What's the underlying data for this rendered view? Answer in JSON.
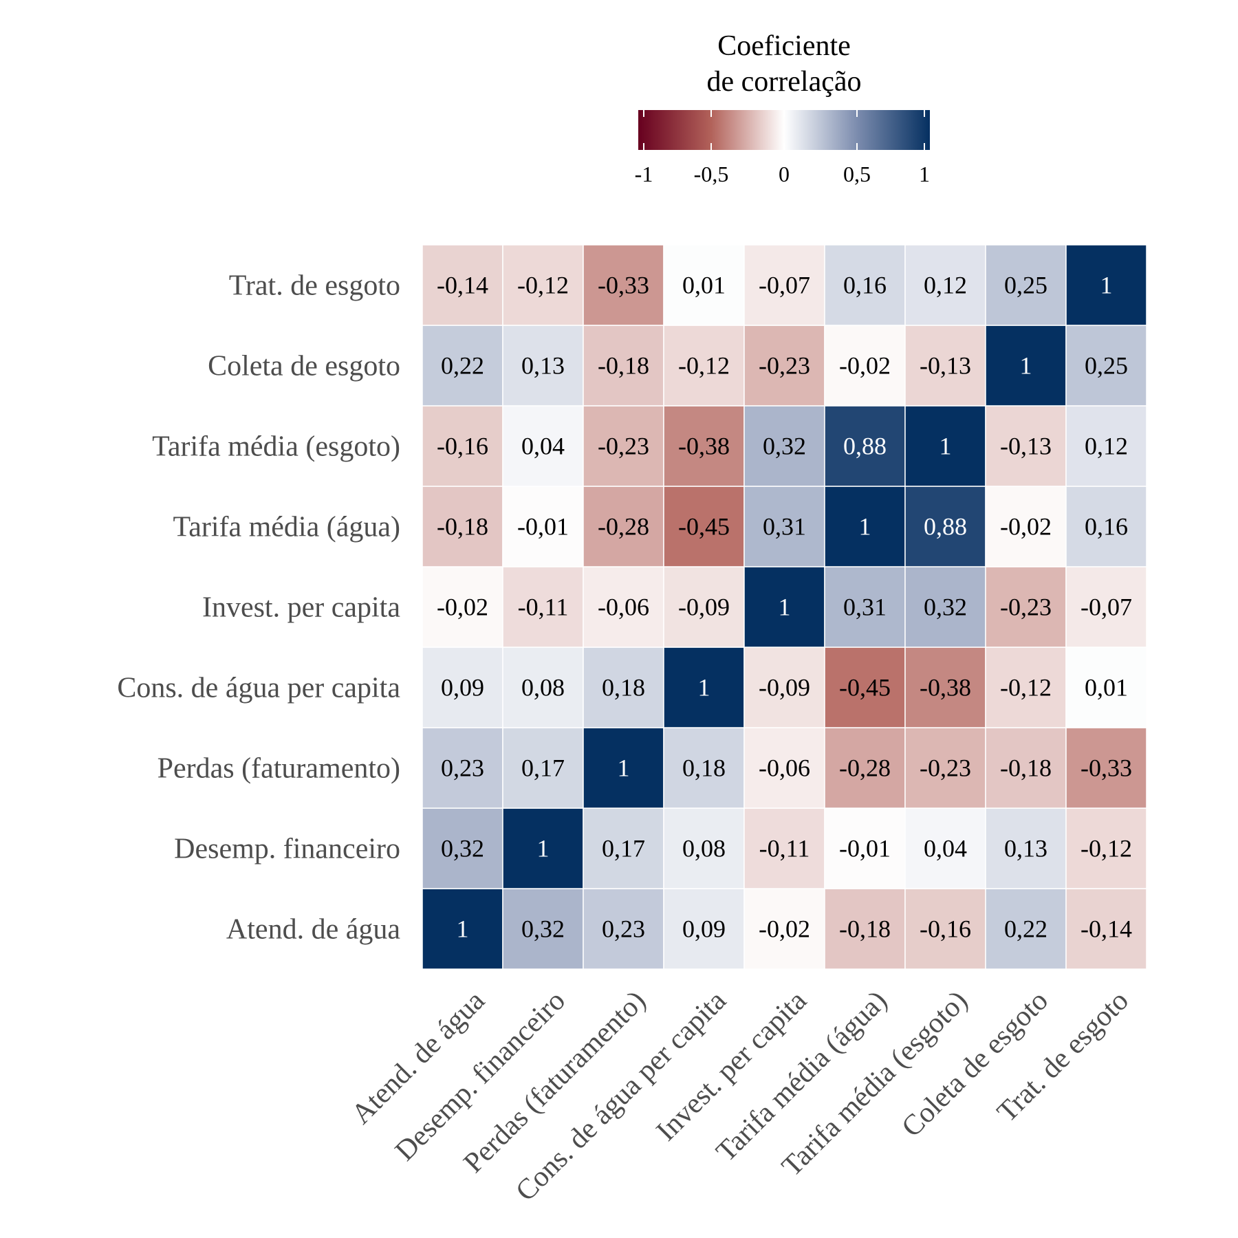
{
  "chart_data": {
    "type": "heatmap",
    "legend": {
      "title_line1": "Coeficiente",
      "title_line2": "de correlação",
      "ticks": [
        {
          "value": -1,
          "label": "-1"
        },
        {
          "value": -0.5,
          "label": "-0,5"
        },
        {
          "value": 0,
          "label": "0"
        },
        {
          "value": 0.5,
          "label": "0,5"
        },
        {
          "value": 1,
          "label": "1"
        }
      ],
      "range": [
        -1,
        1
      ],
      "placement": "top"
    },
    "colors": {
      "negative": "#67001F",
      "neutral": "#FFFFFF",
      "positive": "#053061"
    },
    "variables": [
      "Atend. de água",
      "Desemp. financeiro",
      "Perdas (faturamento)",
      "Cons. de água per capita",
      "Invest. per capita",
      "Tarifa média (água)",
      "Tarifa média (esgoto)",
      "Coleta de esgoto",
      "Trat. de esgoto"
    ],
    "matrix": [
      [
        1,
        0.32,
        0.23,
        0.09,
        -0.02,
        -0.18,
        -0.16,
        0.22,
        -0.14
      ],
      [
        0.32,
        1,
        0.17,
        0.08,
        -0.11,
        -0.01,
        0.04,
        0.13,
        -0.12
      ],
      [
        0.23,
        0.17,
        1,
        0.18,
        -0.06,
        -0.28,
        -0.23,
        -0.18,
        -0.33
      ],
      [
        0.09,
        0.08,
        0.18,
        1,
        -0.09,
        -0.45,
        -0.38,
        -0.12,
        0.01
      ],
      [
        -0.02,
        -0.11,
        -0.06,
        -0.09,
        1,
        0.31,
        0.32,
        -0.23,
        -0.07
      ],
      [
        -0.18,
        -0.01,
        -0.28,
        -0.45,
        0.31,
        1,
        0.88,
        -0.02,
        0.16
      ],
      [
        -0.16,
        0.04,
        -0.23,
        -0.38,
        0.32,
        0.88,
        1,
        -0.13,
        0.12
      ],
      [
        0.22,
        0.13,
        -0.18,
        -0.12,
        -0.23,
        -0.02,
        -0.13,
        1,
        0.25
      ],
      [
        -0.14,
        -0.12,
        -0.33,
        0.01,
        -0.07,
        0.16,
        0.12,
        0.25,
        1
      ]
    ],
    "cell_labels": [
      [
        "1",
        "0,32",
        "0,23",
        "0,09",
        "-0,02",
        "-0,18",
        "-0,16",
        "0,22",
        "-0,14"
      ],
      [
        "0,32",
        "1",
        "0,17",
        "0,08",
        "-0,11",
        "-0,01",
        "0,04",
        "0,13",
        "-0,12"
      ],
      [
        "0,23",
        "0,17",
        "1",
        "0,18",
        "-0,06",
        "-0,28",
        "-0,23",
        "-0,18",
        "-0,33"
      ],
      [
        "0,09",
        "0,08",
        "0,18",
        "1",
        "-0,09",
        "-0,45",
        "-0,38",
        "-0,12",
        "0,01"
      ],
      [
        "-0,02",
        "-0,11",
        "-0,06",
        "-0,09",
        "1",
        "0,31",
        "0,32",
        "-0,23",
        "-0,07"
      ],
      [
        "-0,18",
        "-0,01",
        "-0,28",
        "-0,45",
        "0,31",
        "1",
        "0,88",
        "-0,02",
        "0,16"
      ],
      [
        "-0,16",
        "0,04",
        "-0,23",
        "-0,38",
        "0,32",
        "0,88",
        "1",
        "-0,13",
        "0,12"
      ],
      [
        "0,22",
        "0,13",
        "-0,18",
        "-0,12",
        "-0,23",
        "-0,02",
        "-0,13",
        "1",
        "0,25"
      ],
      [
        "-0,14",
        "-0,12",
        "-0,33",
        "0,01",
        "-0,07",
        "0,16",
        "0,12",
        "0,25",
        "1"
      ]
    ]
  }
}
